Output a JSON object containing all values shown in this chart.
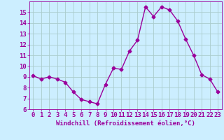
{
  "x": [
    0,
    1,
    2,
    3,
    4,
    5,
    6,
    7,
    8,
    9,
    10,
    11,
    12,
    13,
    14,
    15,
    16,
    17,
    18,
    19,
    20,
    21,
    22,
    23
  ],
  "y": [
    9.1,
    8.8,
    9.0,
    8.8,
    8.5,
    7.6,
    6.9,
    6.7,
    6.5,
    8.3,
    9.8,
    9.7,
    11.4,
    12.4,
    15.5,
    14.6,
    15.5,
    15.2,
    14.2,
    12.5,
    11.0,
    9.2,
    8.8,
    7.6
  ],
  "line_color": "#9b009b",
  "marker": "D",
  "marker_size": 2.5,
  "bg_color": "#cceeff",
  "grid_color": "#aacccc",
  "xlabel": "Windchill (Refroidissement éolien,°C)",
  "xlabel_fontsize": 6.5,
  "tick_fontsize": 6.5,
  "ylim": [
    6,
    16
  ],
  "xlim": [
    -0.5,
    23.5
  ],
  "yticks": [
    6,
    7,
    8,
    9,
    10,
    11,
    12,
    13,
    14,
    15
  ],
  "xticks": [
    0,
    1,
    2,
    3,
    4,
    5,
    6,
    7,
    8,
    9,
    10,
    11,
    12,
    13,
    14,
    15,
    16,
    17,
    18,
    19,
    20,
    21,
    22,
    23
  ]
}
